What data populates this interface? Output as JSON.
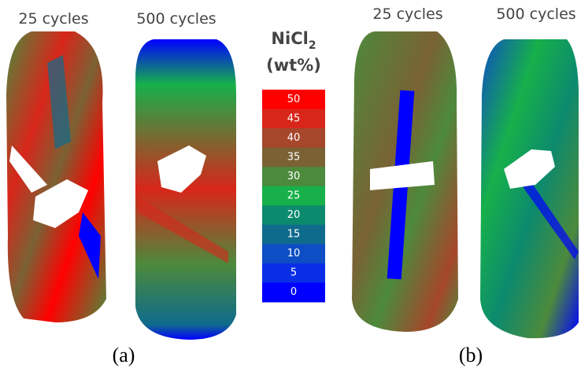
{
  "labels": {
    "a_left": "25 cycles",
    "a_right": "500 cycles",
    "b_left": "25 cycles",
    "b_right": "500 cycles"
  },
  "panels": [
    "(a)",
    "(b)"
  ],
  "colorbar": {
    "title": {
      "main": "NiCl",
      "subscript": "2",
      "unit": "(wt%)"
    },
    "levels": [
      {
        "value": 50,
        "color": "#ff0000"
      },
      {
        "value": 45,
        "color": "#d8261a"
      },
      {
        "value": 40,
        "color": "#a6462b"
      },
      {
        "value": 35,
        "color": "#7a6234"
      },
      {
        "value": 30,
        "color": "#4c8a3c"
      },
      {
        "value": 25,
        "color": "#17b04a"
      },
      {
        "value": 20,
        "color": "#0c8a6e"
      },
      {
        "value": 15,
        "color": "#0f6b8c"
      },
      {
        "value": 10,
        "color": "#0e4ec4"
      },
      {
        "value": 5,
        "color": "#0a2ee8"
      },
      {
        "value": 0,
        "color": "#0000ff"
      }
    ]
  }
}
